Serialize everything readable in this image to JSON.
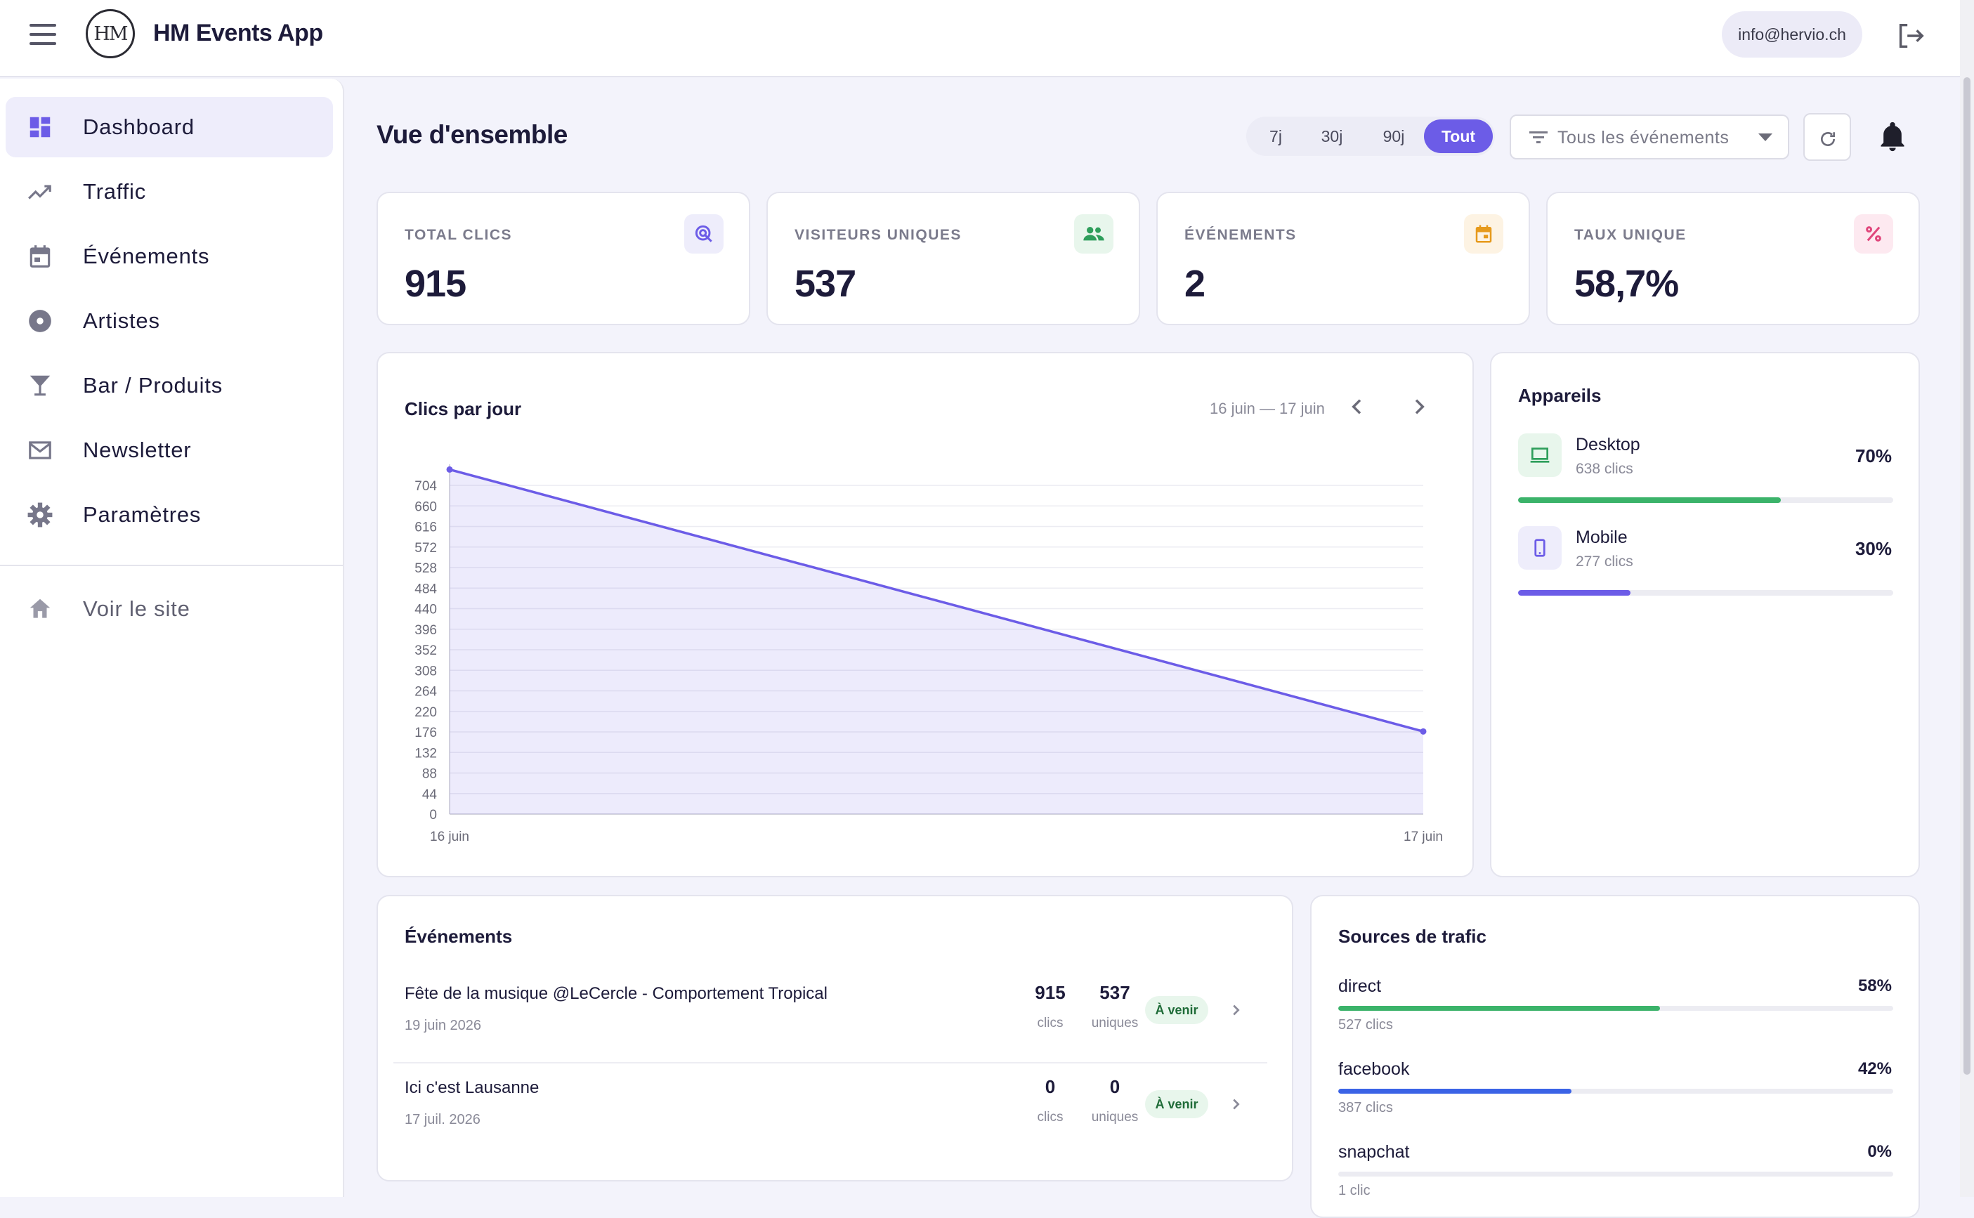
{
  "app": {
    "title": "HM Events App",
    "logo_text": "HM",
    "user_email": "info@hervio.ch"
  },
  "sidebar": {
    "items": [
      {
        "label": "Dashboard",
        "icon": "dashboard-icon",
        "active": true
      },
      {
        "label": "Traffic",
        "icon": "trending-icon"
      },
      {
        "label": "Événements",
        "icon": "calendar-icon"
      },
      {
        "label": "Artistes",
        "icon": "disc-icon"
      },
      {
        "label": "Bar / Produits",
        "icon": "cocktail-icon"
      },
      {
        "label": "Newsletter",
        "icon": "mail-icon"
      },
      {
        "label": "Paramètres",
        "icon": "gear-icon"
      }
    ],
    "footer": {
      "label": "Voir le site",
      "icon": "home-icon"
    }
  },
  "header": {
    "title": "Vue d'ensemble",
    "ranges": [
      "7j",
      "30j",
      "90j",
      "Tout"
    ],
    "active_range": "Tout",
    "filter_selected": "Tous les événements"
  },
  "stats": [
    {
      "label": "TOTAL CLICS",
      "value": "915",
      "icon": "click-icon",
      "color": "#6c5ce7"
    },
    {
      "label": "VISITEURS UNIQUES",
      "value": "537",
      "icon": "people-icon",
      "color": "#2e9e5b"
    },
    {
      "label": "ÉVÉNEMENTS",
      "value": "2",
      "icon": "calendar-icon",
      "color": "#e69a1c"
    },
    {
      "label": "TAUX UNIQUE",
      "value": "58,7%",
      "icon": "percent-icon",
      "color": "#e0457b"
    }
  ],
  "clicks_chart": {
    "title": "Clics par jour",
    "range_label": "16 juin — 17 juin"
  },
  "chart_data": {
    "type": "area",
    "x": [
      "16 juin",
      "17 juin"
    ],
    "series": [
      {
        "values": [
          738,
          177
        ]
      }
    ],
    "ylim": [
      0,
      704
    ],
    "yticks": [
      0,
      44,
      88,
      132,
      176,
      220,
      264,
      308,
      352,
      396,
      440,
      484,
      528,
      572,
      616,
      660,
      704
    ],
    "grid": true,
    "color": "#6c5ce7"
  },
  "devices": {
    "title": "Appareils",
    "items": [
      {
        "name": "Desktop",
        "sub": "638 clics",
        "pct": "70%",
        "fraction": 0.7,
        "color": "#3bb36a",
        "icon": "laptop-icon"
      },
      {
        "name": "Mobile",
        "sub": "277 clics",
        "pct": "30%",
        "fraction": 0.3,
        "color": "#6c5ce7",
        "icon": "phone-icon"
      }
    ]
  },
  "events": {
    "title": "Événements",
    "rows": [
      {
        "name": "Fête de la musique @LeCercle - Comportement Tropical",
        "date": "19 juin 2026",
        "clicks": "915",
        "clicks_unit": "clics",
        "uniques": "537",
        "uniques_unit": "uniques",
        "badge": "À venir"
      },
      {
        "name": "Ici c'est Lausanne",
        "date": "17 juil. 2026",
        "clicks": "0",
        "clicks_unit": "clics",
        "uniques": "0",
        "uniques_unit": "uniques",
        "badge": "À venir"
      }
    ]
  },
  "sources": {
    "title": "Sources de trafic",
    "items": [
      {
        "name": "direct",
        "pct": "58%",
        "fraction": 0.58,
        "sub": "527 clics",
        "color": "#3bb36a"
      },
      {
        "name": "facebook",
        "pct": "42%",
        "fraction": 0.42,
        "sub": "387 clics",
        "color": "#3b63e6"
      },
      {
        "name": "snapchat",
        "pct": "0%",
        "fraction": 0.0,
        "sub": "1 clic",
        "color": "#e6c21c"
      }
    ]
  }
}
